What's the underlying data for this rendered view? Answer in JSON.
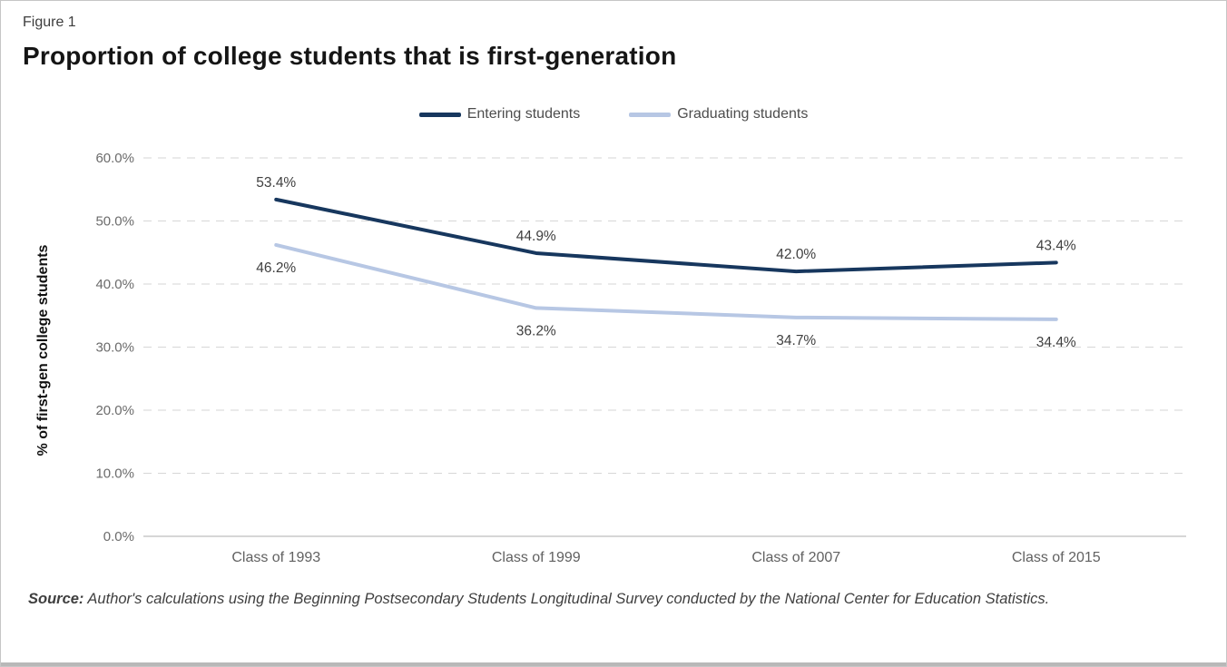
{
  "figure_label": "Figure 1",
  "source": {
    "prefix": "Source:",
    "text": "Author's calculations using the Beginning Postsecondary Students Longitudinal Survey conducted by the National Center for Education Statistics."
  },
  "chart_data": {
    "type": "line",
    "title": "Proportion of college students that is first-generation",
    "xlabel": "",
    "ylabel": "% of first-gen college students",
    "categories": [
      "Class of 1993",
      "Class of 1999",
      "Class of 2007",
      "Class of 2015"
    ],
    "series": [
      {
        "name": "Entering students",
        "color": "#17375E",
        "values": [
          53.4,
          44.9,
          42.0,
          43.4
        ],
        "labels": [
          "53.4%",
          "44.9%",
          "42.0%",
          "43.4%"
        ],
        "label_position": "above"
      },
      {
        "name": "Graduating students",
        "color": "#B7C7E4",
        "values": [
          46.2,
          36.2,
          34.7,
          34.4
        ],
        "labels": [
          "46.2%",
          "36.2%",
          "34.7%",
          "34.4%"
        ],
        "label_position": "below"
      }
    ],
    "ylim": [
      0,
      60
    ],
    "ytick_step": 10,
    "ytick_labels": [
      "0.0%",
      "10.0%",
      "20.0%",
      "30.0%",
      "40.0%",
      "50.0%",
      "60.0%"
    ],
    "grid": "horizontal-dashed",
    "legend_position": "top-center"
  }
}
